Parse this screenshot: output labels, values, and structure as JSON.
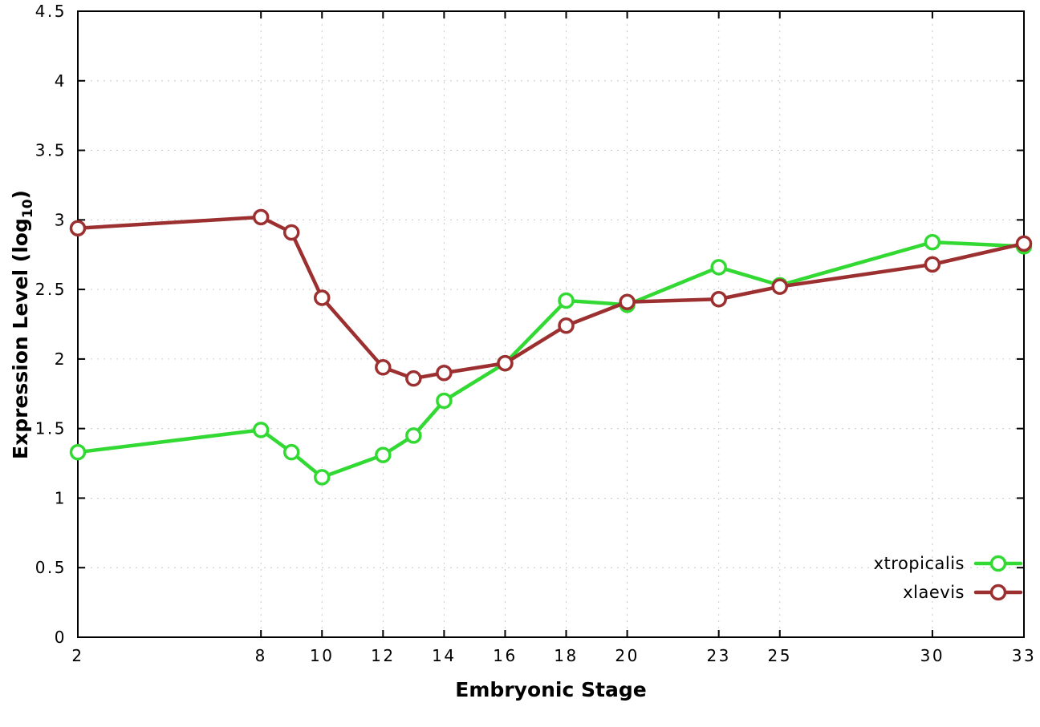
{
  "chart_data": {
    "type": "line",
    "title": "",
    "xlabel": "Embryonic Stage",
    "ylabel": "Expression Level (log10)",
    "ylabel_parts": {
      "prefix": "Expression Level (log",
      "sub": "10",
      "suffix": ")"
    },
    "x": [
      2,
      8,
      9,
      10,
      12,
      13,
      14,
      16,
      18,
      20,
      23,
      25,
      30,
      33
    ],
    "series": [
      {
        "name": "xtropicalis",
        "color": "#33d933",
        "values": [
          1.33,
          1.49,
          1.33,
          1.15,
          1.31,
          1.45,
          1.7,
          1.97,
          2.42,
          2.39,
          2.66,
          2.53,
          2.84,
          2.81
        ]
      },
      {
        "name": "xlaevis",
        "color": "#9c2f2f",
        "values": [
          2.94,
          3.02,
          2.91,
          2.44,
          1.94,
          1.86,
          1.9,
          1.97,
          2.24,
          2.41,
          2.43,
          2.52,
          2.68,
          2.83
        ]
      }
    ],
    "xticks": [
      2,
      8,
      10,
      12,
      14,
      16,
      18,
      20,
      23,
      25,
      30,
      33
    ],
    "yticks": [
      0,
      0.5,
      1,
      1.5,
      2,
      2.5,
      3,
      3.5,
      4,
      4.5
    ],
    "xlim": [
      2,
      33
    ],
    "ylim": [
      0,
      4.5
    ],
    "grid": true,
    "legend_position": "bottom-right",
    "colors": {
      "grid": "#c9c9c9",
      "axis": "#000000",
      "background": "#ffffff"
    }
  }
}
